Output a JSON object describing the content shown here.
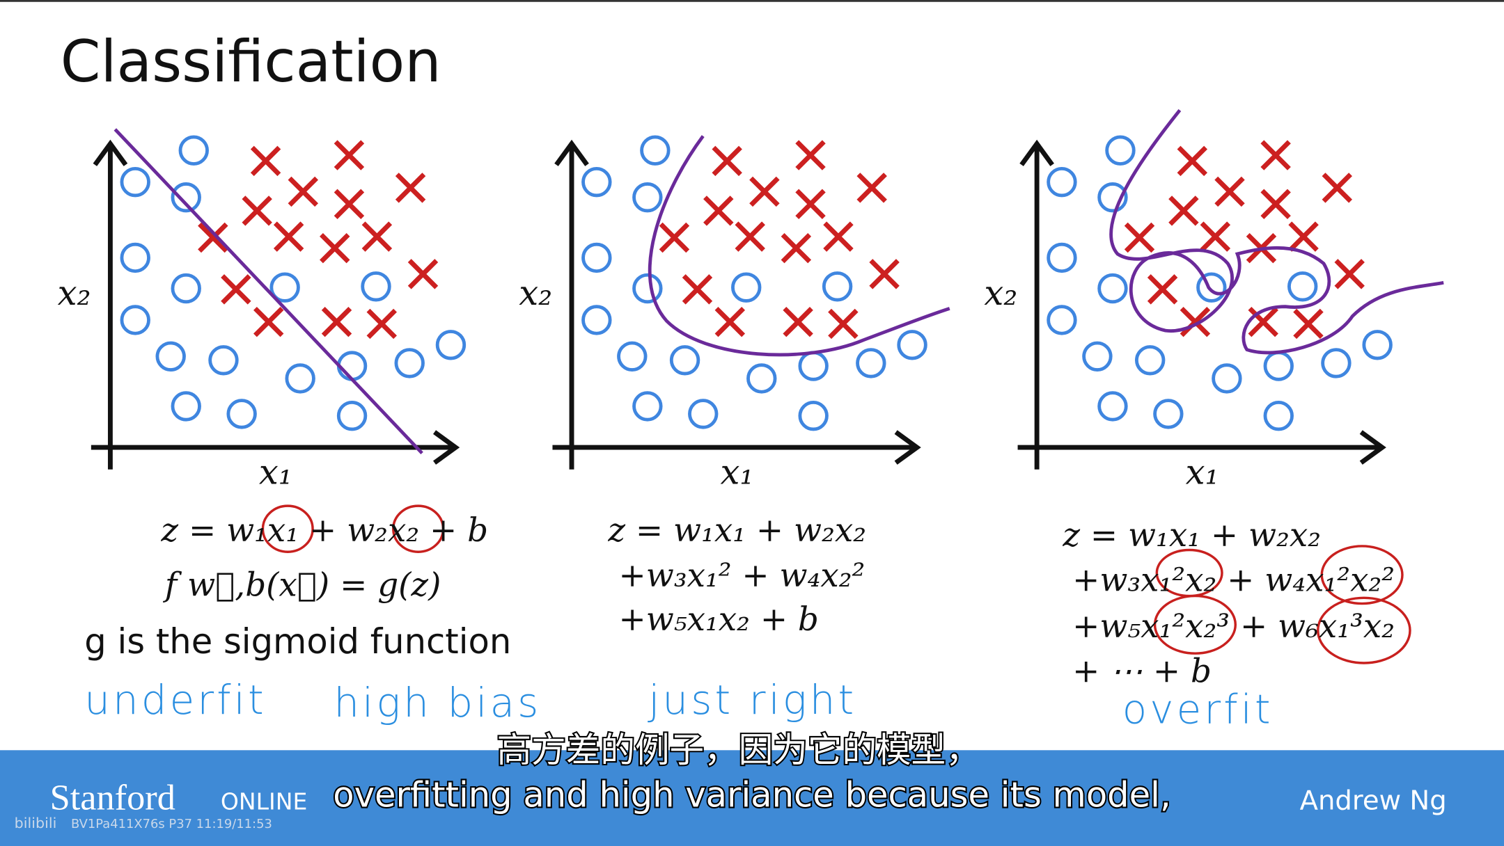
{
  "slide": {
    "title": "Classification",
    "panels": [
      {
        "x_label": "x₁",
        "y_label": "x₂",
        "equations": [
          "z = w₁x₁ + w₂x₂ + b",
          "f w⃗,b(x⃗) = g(z)"
        ],
        "handwritten": [
          "underfit",
          "high bias"
        ]
      },
      {
        "x_label": "x₁",
        "y_label": "x₂",
        "equations": [
          "z = w₁x₁ + w₂x₂",
          "+w₃x₁² + w₄x₂²",
          "+w₅x₁x₂ + b"
        ],
        "handwritten": [
          "just right"
        ]
      },
      {
        "x_label": "x₁",
        "y_label": "x₂",
        "equations": [
          "z = w₁x₁ + w₂x₂",
          "+w₃x₁²x₂ + w₄x₁²x₂²",
          "+w₅x₁²x₂³ + w₆x₁³x₂",
          "+ ⋯ + b"
        ],
        "handwritten": [
          "overfit"
        ]
      }
    ],
    "note": "g is the sigmoid function"
  },
  "subtitles": {
    "chinese": "高方差的例子，因为它的模型，",
    "english": "overfitting and high variance because its model,"
  },
  "footer": {
    "brand": "Stanford",
    "brand_suffix": "ONLINE",
    "speaker": "Andrew Ng",
    "watermark_logo": "bilibili",
    "watermark_id": "BV1Pa411X76s P37 11:19/11:53"
  }
}
